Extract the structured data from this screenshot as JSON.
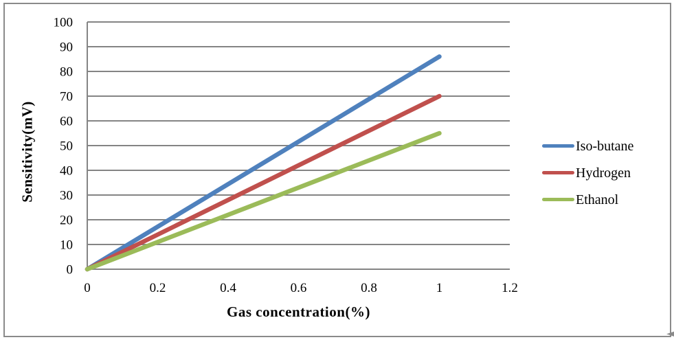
{
  "chart_data": {
    "type": "line",
    "title": "",
    "xlabel": "Gas concentration(%)",
    "ylabel": "Sensitivity(mV)",
    "x": [
      0,
      1
    ],
    "series": [
      {
        "name": "Iso-butane",
        "color": "#4F81BD",
        "values": [
          0,
          86
        ]
      },
      {
        "name": "Hydrogen",
        "color": "#C0504D",
        "values": [
          0,
          70
        ]
      },
      {
        "name": "Ethanol",
        "color": "#9BBB59",
        "values": [
          0,
          55
        ]
      }
    ],
    "xlim": [
      0,
      1.2
    ],
    "ylim": [
      0,
      100
    ],
    "x_ticks": [
      "0",
      "0.2",
      "0.4",
      "0.6",
      "0.8",
      "1",
      "1.2"
    ],
    "y_ticks": [
      "0",
      "10",
      "20",
      "30",
      "40",
      "50",
      "60",
      "70",
      "80",
      "90",
      "100"
    ],
    "grid": "horizontal-only",
    "legend_position": "right",
    "line_width": 6.5
  },
  "colors": {
    "gridline": "#848484",
    "axis": "#848484",
    "frame_border": "#8A8A8A",
    "background": "#FFFFFF",
    "text": "#000000"
  },
  "icons": {
    "cursor_glyph": "◄"
  }
}
